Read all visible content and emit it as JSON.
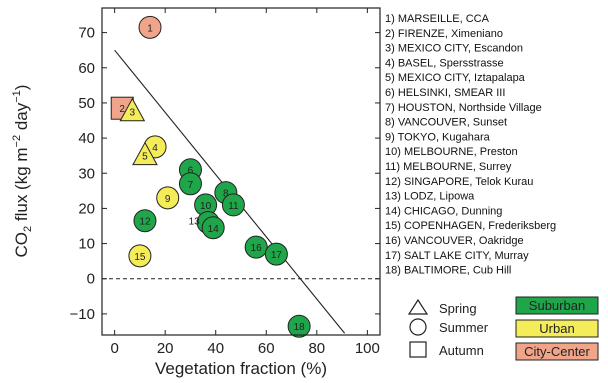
{
  "chart_data": {
    "type": "scatter",
    "xlabel": "Vegetation fraction (%)",
    "ylabel_parts": {
      "co": "CO",
      "sub2": "2",
      "flux": " flux (kg m",
      "exp1": "−2",
      "day": " day",
      "exp2": "−1",
      "close": ")"
    },
    "xlim": [
      -5,
      105
    ],
    "ylim": [
      -16,
      77
    ],
    "x_ticks": [
      "0",
      "20",
      "40",
      "60",
      "80",
      "100"
    ],
    "x_tick_values": [
      0,
      20,
      40,
      60,
      80,
      100
    ],
    "y_ticks": [
      "70",
      "60",
      "50",
      "40",
      "30",
      "20",
      "10",
      "0",
      "−10"
    ],
    "y_tick_values": [
      70,
      60,
      50,
      40,
      30,
      20,
      10,
      0,
      -10
    ],
    "regression_line": {
      "x": [
        0,
        91
      ],
      "y": [
        65,
        -15.5
      ]
    },
    "zero_line": {
      "y": 0,
      "style": "dashed"
    },
    "colors": {
      "Suburban": "#1fa64a",
      "Urban": "#f5ec5a",
      "City-Center": "#f0a58a"
    },
    "points": [
      {
        "id": "1",
        "x": 14,
        "y": 71.5,
        "type": "City-Center",
        "season": "Summer"
      },
      {
        "id": "2",
        "x": 3,
        "y": 48.5,
        "type": "City-Center",
        "season": "Autumn"
      },
      {
        "id": "3",
        "x": 7,
        "y": 47.5,
        "type": "Urban",
        "season": "Spring"
      },
      {
        "id": "4",
        "x": 16,
        "y": 37.5,
        "type": "Urban",
        "season": "Summer"
      },
      {
        "id": "5",
        "x": 12,
        "y": 35,
        "type": "Urban",
        "season": "Spring"
      },
      {
        "id": "6",
        "x": 30,
        "y": 31,
        "type": "Suburban",
        "season": "Summer"
      },
      {
        "id": "7",
        "x": 30,
        "y": 27,
        "type": "Suburban",
        "season": "Summer"
      },
      {
        "id": "8",
        "x": 44,
        "y": 24.5,
        "type": "Suburban",
        "season": "Summer"
      },
      {
        "id": "9",
        "x": 21,
        "y": 23,
        "type": "Urban",
        "season": "Summer"
      },
      {
        "id": "10",
        "x": 36,
        "y": 21,
        "type": "Suburban",
        "season": "Summer"
      },
      {
        "id": "11",
        "x": 47,
        "y": 21,
        "type": "Suburban",
        "season": "Summer"
      },
      {
        "id": "12",
        "x": 12,
        "y": 16.5,
        "type": "Suburban",
        "season": "Summer"
      },
      {
        "id": "13",
        "x": 37,
        "y": 16,
        "type": "Suburban",
        "season": "Summer"
      },
      {
        "id": "14",
        "x": 39,
        "y": 14.5,
        "type": "Suburban",
        "season": "Summer"
      },
      {
        "id": "15",
        "x": 10,
        "y": 6.5,
        "type": "Urban",
        "season": "Summer"
      },
      {
        "id": "16",
        "x": 56,
        "y": 9,
        "type": "Suburban",
        "season": "Summer"
      },
      {
        "id": "17",
        "x": 64,
        "y": 7,
        "type": "Suburban",
        "season": "Summer"
      },
      {
        "id": "18",
        "x": 73,
        "y": -13.5,
        "type": "Suburban",
        "season": "Summer"
      }
    ]
  },
  "sites": [
    "1) MARSEILLE, CCA",
    "2) FIRENZE, Ximeniano",
    "3) MEXICO CITY, Escandon",
    "4) BASEL, Spersstrasse",
    "5) MEXICO CITY, Iztapalapa",
    "6) HELSINKI, SMEAR III",
    "7) HOUSTON, Northside Village",
    "8) VANCOUVER, Sunset",
    "9) TOKYO, Kugahara",
    "10) MELBOURNE, Preston",
    "11) MELBOURNE, Surrey",
    "12) SINGAPORE, Telok Kurau",
    "13) LODZ, Lipowa",
    "14) CHICAGO, Dunning",
    "15) COPENHAGEN, Frederiksberg",
    "16) VANCOUVER, Oakridge",
    "17) SALT LAKE CITY, Murray",
    "18) BALTIMORE, Cub Hill"
  ],
  "legend": {
    "seasons": [
      "Spring",
      "Summer",
      "Autumn"
    ],
    "types": [
      "Suburban",
      "Urban",
      "City-Center"
    ]
  }
}
